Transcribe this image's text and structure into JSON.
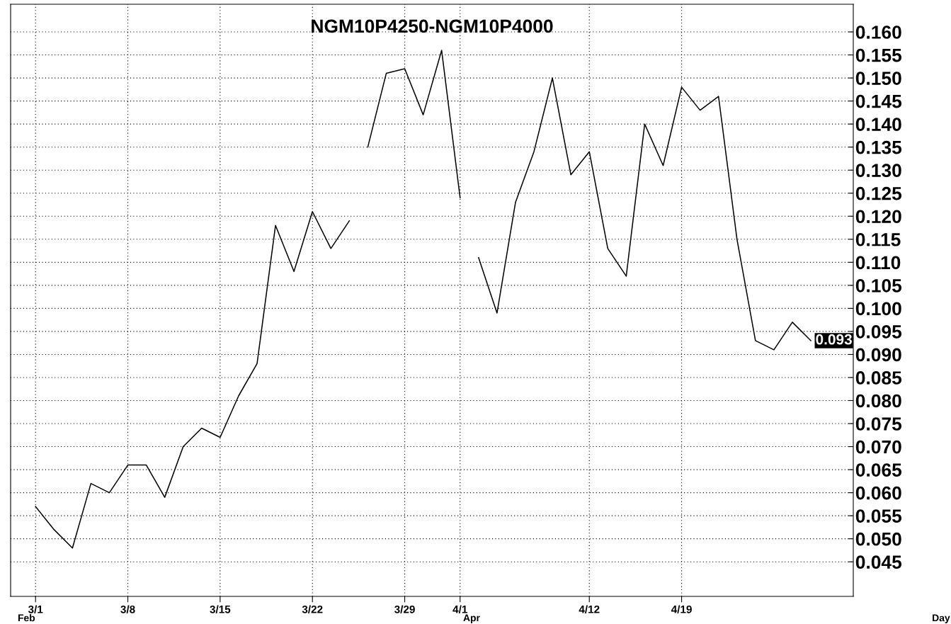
{
  "chart_data": {
    "type": "line",
    "title": "NGM10P4250-NGM10P4000",
    "categories": [
      "3/1",
      null,
      null,
      null,
      null,
      "3/8",
      null,
      null,
      null,
      null,
      "3/15",
      null,
      null,
      null,
      null,
      "3/22",
      null,
      null,
      null,
      null,
      "3/29",
      null,
      null,
      "4/1",
      null,
      null,
      null,
      null,
      null,
      null,
      "4/12",
      null,
      null,
      null,
      null,
      "4/19",
      null,
      null,
      null,
      null,
      null,
      null,
      null
    ],
    "series": [
      {
        "color": "#000000",
        "values": [
          0.057,
          0.052,
          0.048,
          0.062,
          0.06,
          0.066,
          0.066,
          0.059,
          0.07,
          0.074,
          0.072,
          0.081,
          0.088,
          0.118,
          0.108,
          0.121,
          0.113,
          0.119,
          null,
          null,
          null,
          null,
          null,
          null,
          null,
          null,
          null,
          null,
          null,
          null,
          null,
          null,
          null,
          null,
          null,
          null,
          null,
          null,
          null,
          null,
          null,
          null,
          null
        ]
      },
      {
        "color": "#000000",
        "values": [
          null,
          null,
          null,
          null,
          null,
          null,
          null,
          null,
          null,
          null,
          null,
          null,
          null,
          null,
          null,
          null,
          null,
          null,
          0.135,
          0.151,
          0.152,
          0.142,
          0.156,
          0.124,
          null,
          null,
          null,
          null,
          null,
          null,
          null,
          null,
          null,
          null,
          null,
          null,
          null,
          null,
          null,
          null,
          null,
          null,
          null
        ]
      },
      {
        "color": "#000000",
        "values": [
          null,
          null,
          null,
          null,
          null,
          null,
          null,
          null,
          null,
          null,
          null,
          null,
          null,
          null,
          null,
          null,
          null,
          null,
          null,
          null,
          null,
          null,
          null,
          null,
          0.111,
          0.099,
          0.123,
          0.134,
          0.15,
          0.129,
          0.134,
          0.113,
          0.107,
          0.14,
          0.131,
          0.148,
          0.143,
          0.146,
          0.115,
          0.093,
          0.091,
          0.097,
          0.093
        ]
      }
    ],
    "ylim": [
      0.0375,
      0.166
    ],
    "yticks": [
      0.045,
      {
        "value": 0.05,
        "label": "0.050"
      },
      0.055,
      {
        "value": 0.06,
        "label": "0.060"
      },
      0.065,
      {
        "value": 0.07,
        "label": "0.070"
      },
      0.075,
      {
        "value": 0.08,
        "label": "0.080"
      },
      0.085,
      {
        "value": 0.09,
        "label": "0.090"
      },
      0.095,
      {
        "value": 0.1,
        "label": "0.100"
      },
      0.105,
      {
        "value": 0.11,
        "label": "0.110"
      },
      0.115,
      {
        "value": 0.12,
        "label": "0.120"
      },
      0.125,
      {
        "value": 0.13,
        "label": "0.130"
      },
      0.135,
      {
        "value": 0.14,
        "label": "0.140"
      },
      0.145,
      {
        "value": 0.15,
        "label": "0.150"
      },
      0.155,
      {
        "value": 0.16,
        "label": "0.160"
      }
    ],
    "grid": true,
    "line_style": "solid",
    "annotations": [
      "Feb",
      "Apr",
      "0.093",
      "Day"
    ]
  }
}
